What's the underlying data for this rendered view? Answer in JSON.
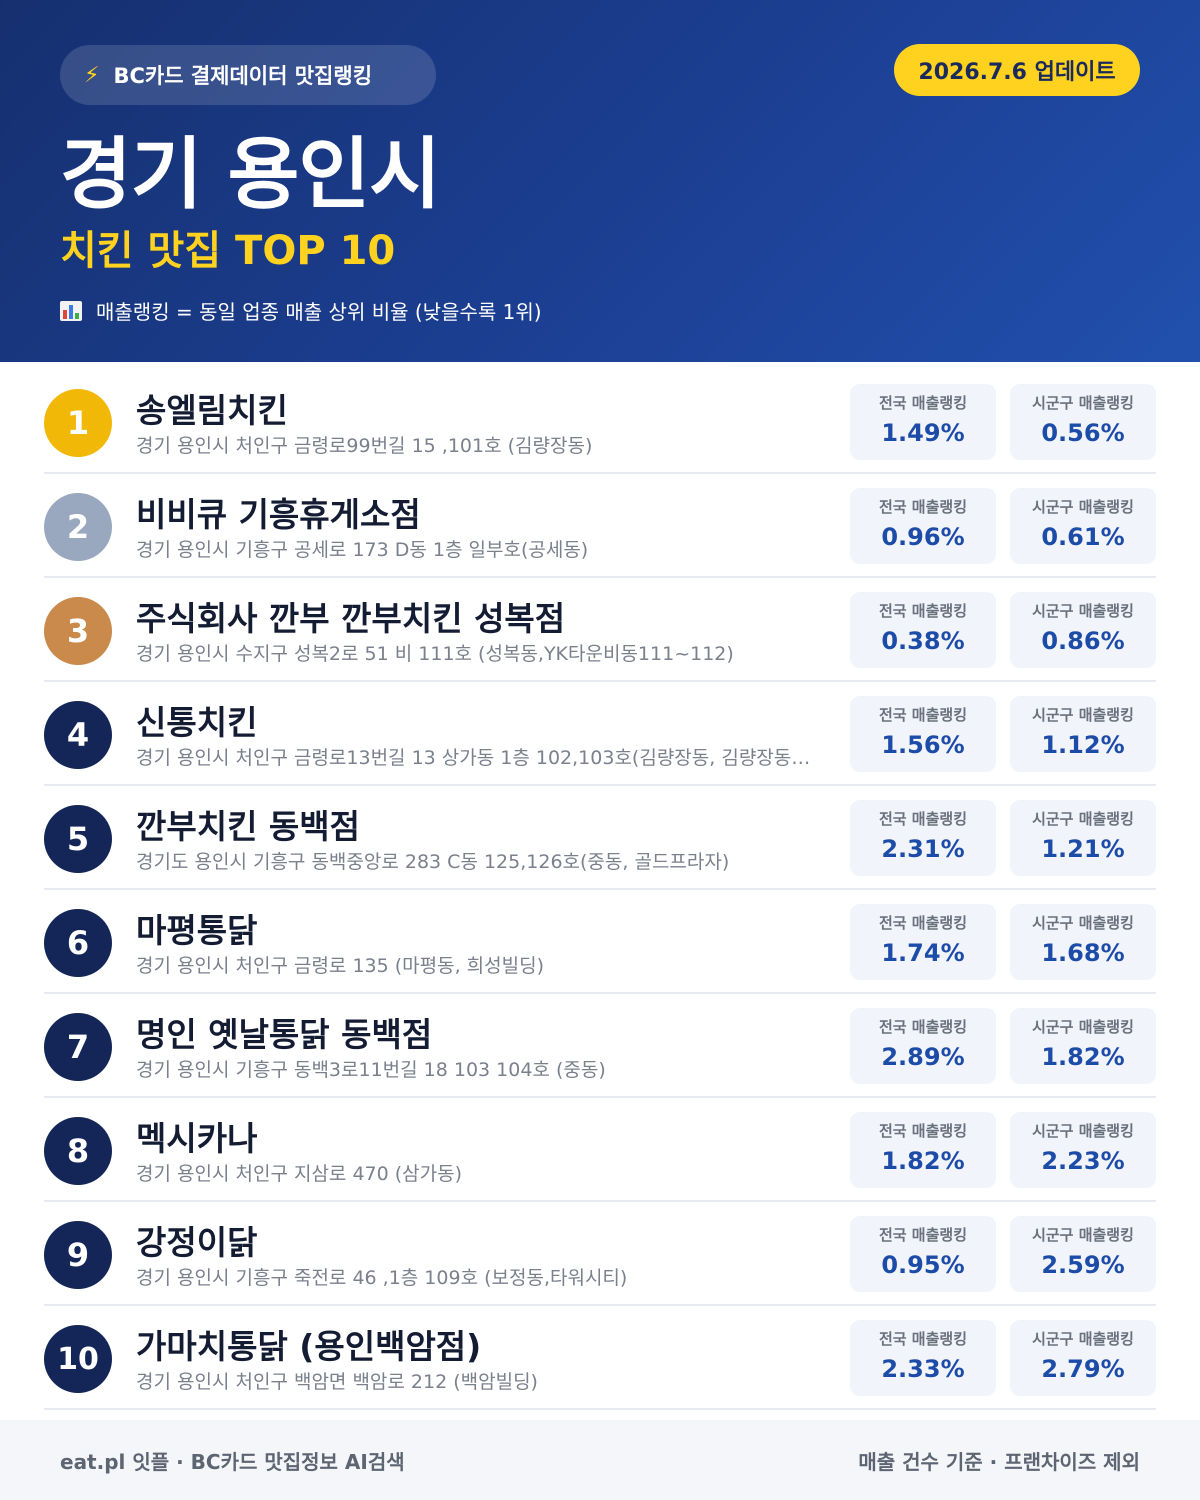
{
  "header": {
    "badge_icon": "lightning-icon",
    "badge_text": "BC카드 결제데이터 맛집랭킹",
    "update_text": "2026.7.6 업데이트",
    "city": "경기 용인시",
    "subtitle": "치킨 맛집 TOP 10",
    "note_icon": "bar-chart-icon",
    "note": "매출랭킹 = 동일 업종 매출 상위 비율 (낮을수록 1위)"
  },
  "stat_labels": {
    "national": "전국 매출랭킹",
    "local": "시군구 매출랭킹"
  },
  "restaurants": [
    {
      "rank": "1",
      "name": "송엘림치킨",
      "address": "경기 용인시 처인구 금령로99번길 15 ,101호 (김량장동)",
      "national": "1.49%",
      "local": "0.56%"
    },
    {
      "rank": "2",
      "name": "비비큐 기흥휴게소점",
      "address": "경기 용인시 기흥구 공세로 173 D동 1층 일부호(공세동)",
      "national": "0.96%",
      "local": "0.61%"
    },
    {
      "rank": "3",
      "name": "주식회사 깐부 깐부치킨 성복점",
      "address": "경기 용인시 수지구 성복2로 51 비 111호 (성복동,YK타운비동111~112)",
      "national": "0.38%",
      "local": "0.86%"
    },
    {
      "rank": "4",
      "name": "신통치킨",
      "address": "경기 용인시 처인구 금령로13번길 13 상가동 1층 102,103호(김량장동, 김량장동…",
      "national": "1.56%",
      "local": "1.12%"
    },
    {
      "rank": "5",
      "name": "깐부치킨 동백점",
      "address": "경기도 용인시 기흥구 동백중앙로 283 C동 125,126호(중동, 골드프라자)",
      "national": "2.31%",
      "local": "1.21%"
    },
    {
      "rank": "6",
      "name": "마평통닭",
      "address": "경기 용인시 처인구 금령로 135 (마평동, 희성빌딩)",
      "national": "1.74%",
      "local": "1.68%"
    },
    {
      "rank": "7",
      "name": "명인 옛날통닭 동백점",
      "address": "경기 용인시 기흥구 동백3로11번길 18 103 104호 (중동)",
      "national": "2.89%",
      "local": "1.82%"
    },
    {
      "rank": "8",
      "name": "멕시카나",
      "address": "경기 용인시 처인구 지삼로 470 (삼가동)",
      "national": "1.82%",
      "local": "2.23%"
    },
    {
      "rank": "9",
      "name": "강정이닭",
      "address": "경기 용인시 기흥구 죽전로 46 ,1층 109호 (보정동,타워시티)",
      "national": "0.95%",
      "local": "2.59%"
    },
    {
      "rank": "10",
      "name": "가마치통닭 (용인백암점)",
      "address": "경기 용인시 처인구 백암면 백암로 212 (백암빌딩)",
      "national": "2.33%",
      "local": "2.79%"
    }
  ],
  "footer": {
    "left": "eat.pl 잇플 · BC카드 맛집정보 AI검색",
    "right": "매출 건수 기준 · 프랜차이즈 제외"
  },
  "colors": {
    "header_bg": "#1c3f93",
    "accent_yellow": "#ffd21f",
    "rank_gold": "#f2b807",
    "rank_silver": "#9aa8bf",
    "rank_bronze": "#c98a4b",
    "rank_default": "#132657",
    "stat_value": "#1d4ca8"
  }
}
